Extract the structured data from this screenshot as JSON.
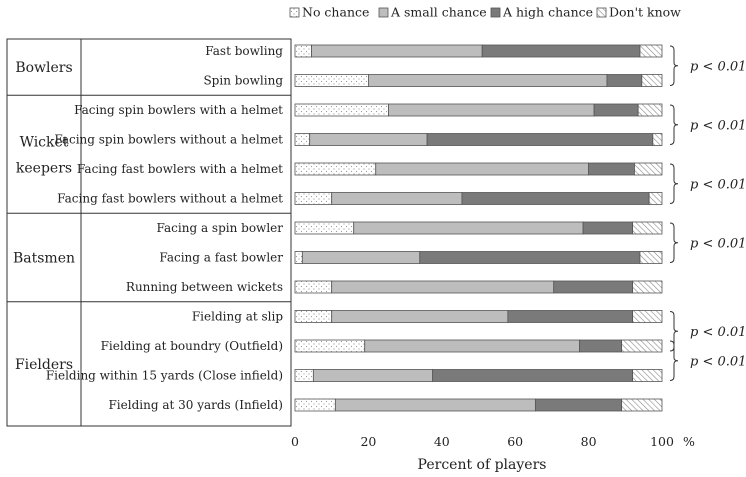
{
  "chart_data": {
    "type": "bar",
    "stacked": true,
    "orientation": "horizontal",
    "title": "",
    "xlabel": "Percent of players",
    "ylabel": "",
    "xlim": [
      0,
      100
    ],
    "x_unit": "%",
    "x_ticks": [
      "0",
      "20",
      "40",
      "60",
      "80",
      "100"
    ],
    "legend": {
      "placement": "top",
      "entries": [
        "No chance",
        "A small chance",
        "A high chance",
        "Don't know"
      ]
    },
    "series_colors": [
      "#ffffff",
      "#bdbdbd",
      "#7a7a7a",
      "#ffffff"
    ],
    "groups": [
      {
        "name": "Bowlers",
        "lines": [
          "Bowlers"
        ],
        "rows": [
          0,
          1
        ]
      },
      {
        "name": "Wicket keepers",
        "lines": [
          "Wicket",
          "keepers"
        ],
        "rows": [
          2,
          3,
          4,
          5
        ]
      },
      {
        "name": "Batsmen",
        "lines": [
          "Batsmen"
        ],
        "rows": [
          6,
          7,
          8
        ]
      },
      {
        "name": "Fielders",
        "lines": [
          "Fielders"
        ],
        "rows": [
          9,
          10,
          11,
          12
        ]
      }
    ],
    "categories": [
      "Fast bowling",
      "Spin bowling",
      "Facing spin bowlers with a helmet",
      "Facing spin bowlers without a helmet",
      "Facing fast bowlers with a helmet",
      "Facing fast bowlers without a helmet",
      "Facing a spin bowler",
      "Facing a fast bowler",
      "Running between wickets",
      "Fielding at slip",
      "Fielding at boundry (Outfield)",
      "Fielding within 15 yards (Close infield)",
      "Fielding at 30 yards (Infield)"
    ],
    "series": [
      {
        "name": "No chance",
        "values": [
          4.5,
          20,
          25.5,
          4,
          22,
          10,
          16,
          2,
          10,
          10,
          19,
          5,
          11
        ]
      },
      {
        "name": "A small chance",
        "values": [
          46.5,
          65,
          56,
          32,
          58,
          35.5,
          62.5,
          32,
          60.5,
          48,
          58.5,
          32.5,
          54.5
        ]
      },
      {
        "name": "A high chance",
        "values": [
          43,
          9.5,
          12,
          61.5,
          12.5,
          51,
          13.5,
          60,
          21.5,
          34,
          11.5,
          54.5,
          23.5
        ]
      },
      {
        "name": "Don't know",
        "values": [
          6,
          5.5,
          6.5,
          2.5,
          7.5,
          3.5,
          8,
          6,
          8,
          8,
          11,
          8,
          11
        ]
      }
    ],
    "annotations": [
      {
        "text": "p < 0.01",
        "rows": [
          0,
          1
        ]
      },
      {
        "text": "p < 0.01",
        "rows": [
          2,
          3
        ]
      },
      {
        "text": "p < 0.01",
        "rows": [
          4,
          5
        ]
      },
      {
        "text": "p < 0.01",
        "rows": [
          6,
          7
        ]
      },
      {
        "text": "p < 0.01",
        "rows": [
          9,
          10
        ]
      },
      {
        "text": "p < 0.01",
        "rows": [
          10,
          11
        ]
      }
    ]
  }
}
